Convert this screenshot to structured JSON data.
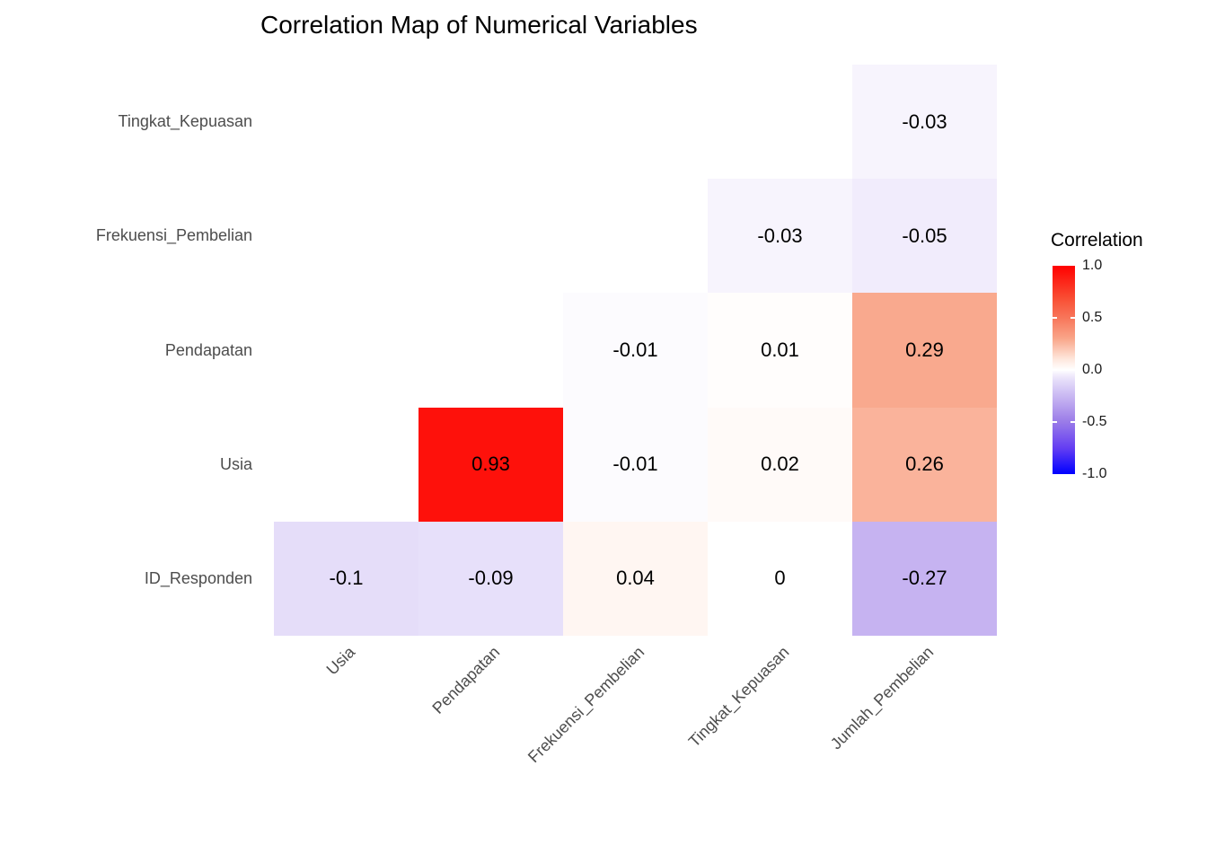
{
  "title": "Correlation Map of Numerical Variables",
  "chart_data": {
    "type": "heatmap",
    "title": "Correlation Map of Numerical Variables",
    "x_categories": [
      "Usia",
      "Pendapatan",
      "Frekuensi_Pembelian",
      "Tingkat_Kepuasan",
      "Jumlah_Pembelian"
    ],
    "y_categories": [
      "Tingkat_Kepuasan",
      "Frekuensi_Pembelian",
      "Pendapatan",
      "Usia",
      "ID_Responden"
    ],
    "value_range": [
      -1,
      1
    ],
    "colors": {
      "high": "#FF0000",
      "mid": "#FFFFFF",
      "low": "#0000FF"
    },
    "cells": [
      {
        "row": 0,
        "col": 4,
        "row_var": "Tingkat_Kepuasan",
        "col_var": "Jumlah_Pembelian",
        "value": -0.03,
        "label": "-0.03"
      },
      {
        "row": 1,
        "col": 3,
        "row_var": "Frekuensi_Pembelian",
        "col_var": "Tingkat_Kepuasan",
        "value": -0.03,
        "label": "-0.03"
      },
      {
        "row": 1,
        "col": 4,
        "row_var": "Frekuensi_Pembelian",
        "col_var": "Jumlah_Pembelian",
        "value": -0.05,
        "label": "-0.05"
      },
      {
        "row": 2,
        "col": 2,
        "row_var": "Pendapatan",
        "col_var": "Frekuensi_Pembelian",
        "value": -0.01,
        "label": "-0.01"
      },
      {
        "row": 2,
        "col": 3,
        "row_var": "Pendapatan",
        "col_var": "Tingkat_Kepuasan",
        "value": 0.01,
        "label": "0.01"
      },
      {
        "row": 2,
        "col": 4,
        "row_var": "Pendapatan",
        "col_var": "Jumlah_Pembelian",
        "value": 0.29,
        "label": "0.29"
      },
      {
        "row": 3,
        "col": 1,
        "row_var": "Usia",
        "col_var": "Pendapatan",
        "value": 0.93,
        "label": "0.93"
      },
      {
        "row": 3,
        "col": 2,
        "row_var": "Usia",
        "col_var": "Frekuensi_Pembelian",
        "value": -0.01,
        "label": "-0.01"
      },
      {
        "row": 3,
        "col": 3,
        "row_var": "Usia",
        "col_var": "Tingkat_Kepuasan",
        "value": 0.02,
        "label": "0.02"
      },
      {
        "row": 3,
        "col": 4,
        "row_var": "Usia",
        "col_var": "Jumlah_Pembelian",
        "value": 0.26,
        "label": "0.26"
      },
      {
        "row": 4,
        "col": 0,
        "row_var": "ID_Responden",
        "col_var": "Usia",
        "value": -0.1,
        "label": "-0.1"
      },
      {
        "row": 4,
        "col": 1,
        "row_var": "ID_Responden",
        "col_var": "Pendapatan",
        "value": -0.09,
        "label": "-0.09"
      },
      {
        "row": 4,
        "col": 2,
        "row_var": "ID_Responden",
        "col_var": "Frekuensi_Pembelian",
        "value": 0.04,
        "label": "0.04"
      },
      {
        "row": 4,
        "col": 3,
        "row_var": "ID_Responden",
        "col_var": "Tingkat_Kepuasan",
        "value": 0,
        "label": "0"
      },
      {
        "row": 4,
        "col": 4,
        "row_var": "ID_Responden",
        "col_var": "Jumlah_Pembelian",
        "value": -0.27,
        "label": "-0.27"
      }
    ],
    "legend": {
      "title": "Correlation",
      "ticks": [
        {
          "label": "1.0",
          "value": 1
        },
        {
          "label": "0.5",
          "value": 0.5
        },
        {
          "label": "0.0",
          "value": 0
        },
        {
          "label": "-0.5",
          "value": -0.5
        },
        {
          "label": "-1.0",
          "value": -1
        }
      ]
    }
  }
}
